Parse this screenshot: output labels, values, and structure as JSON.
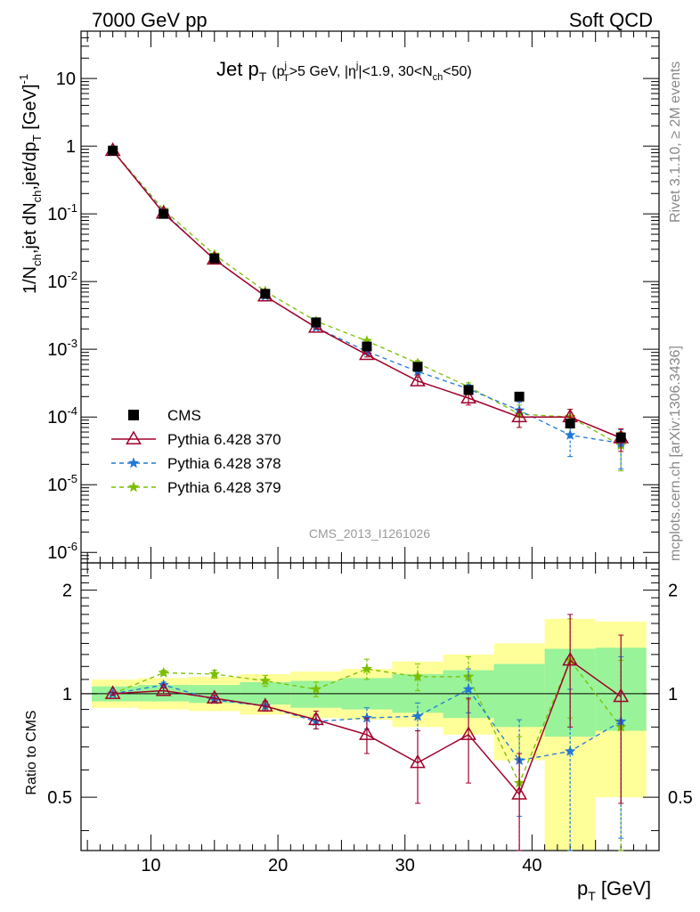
{
  "header": {
    "left": "7000 GeV pp",
    "right": "Soft QCD"
  },
  "side_labels": {
    "rivet": "Rivet 3.1.10, ≥ 2M events",
    "mcplots": "mcplots.cern.ch [arXiv:1306.3436]"
  },
  "main_plot": {
    "title_main": "Jet p",
    "title_main_sub": "T",
    "title_cuts": "(p",
    "title_cuts_sup": "j",
    "title_cuts_sub": "T",
    "title_cuts_2": ">5 GeV, |η",
    "title_cuts_sup2": "j",
    "title_cuts_3": "|<1.9, 30<N",
    "title_cuts_sub2": "ch",
    "title_cuts_4": "<50)",
    "ylabel": "1/N",
    "ylabel_sub1": "ch",
    "ylabel_mid": ",jet dN",
    "ylabel_sub2": "ch",
    "ylabel_mid2": ",jet/dp",
    "ylabel_sub3": "T",
    "ylabel_unit": " [GeV]",
    "ylabel_sup": "-1",
    "watermark": "CMS_2013_I1261026",
    "yticks": [
      {
        "base": "10",
        "exp": "",
        "label": "10"
      },
      {
        "base": "1",
        "exp": "",
        "label": "1"
      },
      {
        "base": "10",
        "exp": "-1"
      },
      {
        "base": "10",
        "exp": "-2"
      },
      {
        "base": "10",
        "exp": "-3"
      },
      {
        "base": "10",
        "exp": "-4"
      },
      {
        "base": "10",
        "exp": "-5"
      },
      {
        "base": "10",
        "exp": "-6"
      }
    ]
  },
  "ratio_plot": {
    "ylabel": "Ratio to CMS",
    "yticks": [
      "2",
      "1",
      "0.5"
    ]
  },
  "xaxis": {
    "label": "p",
    "label_sub": "T",
    "label_unit": " [GeV]",
    "ticks": [
      "10",
      "20",
      "30",
      "40"
    ]
  },
  "legend": [
    {
      "label": "CMS",
      "color": "#000000",
      "marker": "square"
    },
    {
      "label": "Pythia 6.428 370",
      "color": "#a0002a",
      "marker": "triangle"
    },
    {
      "label": "Pythia 6.428 378",
      "color": "#1f78d6",
      "marker": "star"
    },
    {
      "label": "Pythia 6.428 379",
      "color": "#7bbf00",
      "marker": "star"
    }
  ],
  "chart_data": {
    "type": "scatter",
    "xlabel": "p_T [GeV]",
    "ylabel": "1/N_ch,jet dN_ch,jet/dp_T [GeV]^-1",
    "xlim": [
      4.5,
      50
    ],
    "ylim": [
      7e-07,
      50
    ],
    "yscale": "log",
    "x": [
      7,
      11,
      15,
      19,
      23,
      27,
      31,
      35,
      39,
      43,
      47
    ],
    "series": [
      {
        "name": "CMS",
        "color": "#000000",
        "values": [
          0.86,
          0.1,
          0.022,
          0.0066,
          0.0025,
          0.0011,
          0.00055,
          0.00025,
          0.0002,
          8e-05,
          5e-05
        ]
      },
      {
        "name": "Pythia 6.428 370",
        "color": "#a0002a",
        "values": [
          0.86,
          0.102,
          0.0213,
          0.0061,
          0.0021,
          0.00083,
          0.00034,
          0.00019,
          0.0001,
          0.0001,
          4.9e-05
        ],
        "errors": [
          0.01,
          0.002,
          0.0004,
          0.0002,
          0.0001,
          6e-05,
          5e-05,
          4e-05,
          3e-05,
          3e-05,
          1.8e-05
        ]
      },
      {
        "name": "Pythia 6.428 378",
        "color": "#1f78d6",
        "values": [
          0.86,
          0.106,
          0.0211,
          0.0061,
          0.0021,
          0.00093,
          0.00047,
          0.00026,
          0.000125,
          5.4e-05,
          4.1e-05
        ],
        "errors": [
          0.01,
          0.002,
          0.0004,
          0.0002,
          0.0001,
          6e-05,
          5e-05,
          4e-05,
          4e-05,
          2.8e-05,
          2.4e-05
        ]
      },
      {
        "name": "Pythia 6.428 379",
        "color": "#7bbf00",
        "values": [
          0.86,
          0.115,
          0.025,
          0.0072,
          0.0026,
          0.00133,
          0.00062,
          0.00028,
          0.00011,
          0.0001,
          3.8e-05
        ],
        "errors": [
          0.01,
          0.002,
          0.0004,
          0.0002,
          0.0001,
          7e-05,
          6e-05,
          4e-05,
          4e-05,
          3e-05,
          2.2e-05
        ]
      }
    ],
    "ratio": {
      "ylabel": "Ratio to CMS",
      "ylim": [
        0.35,
        2.4
      ],
      "yscale": "log",
      "band_inner": [
        [
          0.95,
          1.05
        ],
        [
          0.95,
          1.06
        ],
        [
          0.94,
          1.06
        ],
        [
          0.93,
          1.08
        ],
        [
          0.91,
          1.09
        ],
        [
          0.9,
          1.11
        ],
        [
          0.88,
          1.14
        ],
        [
          0.85,
          1.17
        ],
        [
          0.8,
          1.22
        ],
        [
          0.75,
          1.35
        ],
        [
          0.78,
          1.36
        ]
      ],
      "band_outer": [
        [
          0.91,
          1.1
        ],
        [
          0.9,
          1.11
        ],
        [
          0.89,
          1.12
        ],
        [
          0.87,
          1.14
        ],
        [
          0.85,
          1.16
        ],
        [
          0.84,
          1.18
        ],
        [
          0.8,
          1.24
        ],
        [
          0.76,
          1.3
        ],
        [
          0.64,
          1.4
        ],
        [
          0.35,
          1.65
        ],
        [
          0.5,
          1.62
        ]
      ],
      "series": [
        {
          "name": "Pythia 6.428 370",
          "color": "#a0002a",
          "values": [
            1.0,
            1.02,
            0.97,
            0.92,
            0.84,
            0.76,
            0.63,
            0.76,
            0.51,
            1.25,
            0.98
          ],
          "errors": [
            0.01,
            0.02,
            0.02,
            0.03,
            0.05,
            0.09,
            0.15,
            0.21,
            0.16,
            0.45,
            0.5
          ]
        },
        {
          "name": "Pythia 6.428 378",
          "color": "#1f78d6",
          "values": [
            1.0,
            1.06,
            0.96,
            0.92,
            0.83,
            0.85,
            0.86,
            1.03,
            0.64,
            0.68,
            0.83
          ],
          "errors": [
            0.01,
            0.02,
            0.02,
            0.03,
            0.04,
            0.06,
            0.08,
            0.15,
            0.2,
            0.35,
            0.45
          ]
        },
        {
          "name": "Pythia 6.428 379",
          "color": "#7bbf00",
          "values": [
            1.0,
            1.15,
            1.14,
            1.09,
            1.03,
            1.18,
            1.12,
            1.12,
            0.55,
            1.25,
            0.8
          ],
          "errors": [
            0.01,
            0.02,
            0.03,
            0.04,
            0.05,
            0.08,
            0.1,
            0.16,
            0.2,
            0.4,
            0.45
          ]
        }
      ]
    }
  }
}
